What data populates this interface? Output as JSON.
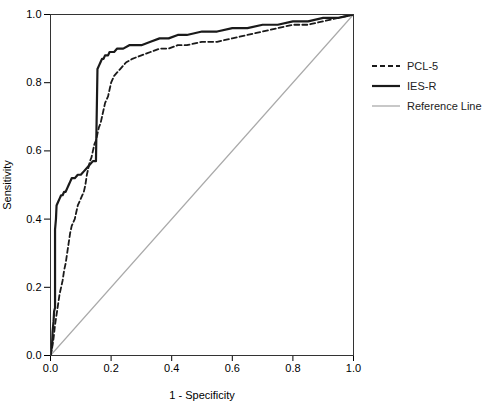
{
  "chart_data": {
    "type": "line",
    "xlabel": "1 - Specificity",
    "ylabel": "Sensitivity",
    "xlim": [
      0.0,
      1.0
    ],
    "ylim": [
      0.0,
      1.0
    ],
    "xticks": [
      {
        "value": 0,
        "label": "0.0"
      },
      0.2,
      0.4,
      0.6,
      0.8,
      {
        "value": 1,
        "label": "1.0"
      }
    ],
    "yticks": [
      {
        "value": 0,
        "label": "0.0"
      },
      0.2,
      0.4,
      0.6,
      0.8,
      {
        "value": 1,
        "label": "1.0"
      }
    ],
    "legend": "right",
    "series": [
      {
        "name": "PCL-5",
        "color": "#1a1a1a",
        "line_style": "dashed",
        "x": [
          0.0,
          0.005,
          0.01,
          0.015,
          0.02,
          0.025,
          0.03,
          0.035,
          0.04,
          0.045,
          0.05,
          0.055,
          0.06,
          0.065,
          0.07,
          0.075,
          0.08,
          0.085,
          0.09,
          0.095,
          0.1,
          0.105,
          0.11,
          0.115,
          0.12,
          0.125,
          0.13,
          0.135,
          0.14,
          0.145,
          0.15,
          0.155,
          0.16,
          0.165,
          0.17,
          0.175,
          0.18,
          0.185,
          0.19,
          0.195,
          0.2,
          0.21,
          0.22,
          0.23,
          0.25,
          0.27,
          0.3,
          0.33,
          0.36,
          0.39,
          0.42,
          0.45,
          0.5,
          0.55,
          0.6,
          0.65,
          0.7,
          0.75,
          0.8,
          0.85,
          0.9,
          0.95,
          1.0
        ],
        "values": [
          0.0,
          0.02,
          0.05,
          0.09,
          0.12,
          0.15,
          0.18,
          0.2,
          0.22,
          0.25,
          0.27,
          0.3,
          0.33,
          0.36,
          0.38,
          0.39,
          0.4,
          0.42,
          0.44,
          0.45,
          0.46,
          0.47,
          0.48,
          0.5,
          0.53,
          0.55,
          0.57,
          0.58,
          0.6,
          0.62,
          0.63,
          0.65,
          0.67,
          0.68,
          0.7,
          0.72,
          0.74,
          0.75,
          0.76,
          0.78,
          0.8,
          0.82,
          0.83,
          0.84,
          0.86,
          0.87,
          0.88,
          0.89,
          0.9,
          0.9,
          0.91,
          0.91,
          0.92,
          0.92,
          0.93,
          0.94,
          0.95,
          0.96,
          0.97,
          0.97,
          0.98,
          0.99,
          1.0
        ]
      },
      {
        "name": "IES-R",
        "color": "#1a1a1a",
        "line_style": "solid",
        "x": [
          0.0,
          0.005,
          0.007,
          0.01,
          0.012,
          0.015,
          0.015,
          0.018,
          0.02,
          0.025,
          0.03,
          0.035,
          0.04,
          0.045,
          0.05,
          0.055,
          0.06,
          0.065,
          0.07,
          0.08,
          0.09,
          0.1,
          0.11,
          0.12,
          0.13,
          0.14,
          0.15,
          0.155,
          0.16,
          0.165,
          0.17,
          0.175,
          0.18,
          0.185,
          0.19,
          0.195,
          0.2,
          0.21,
          0.22,
          0.24,
          0.26,
          0.28,
          0.3,
          0.33,
          0.36,
          0.39,
          0.42,
          0.45,
          0.5,
          0.55,
          0.6,
          0.65,
          0.7,
          0.75,
          0.8,
          0.85,
          0.9,
          0.95,
          1.0
        ],
        "values": [
          0.0,
          0.03,
          0.07,
          0.1,
          0.13,
          0.14,
          0.37,
          0.4,
          0.44,
          0.45,
          0.46,
          0.47,
          0.47,
          0.48,
          0.48,
          0.49,
          0.5,
          0.51,
          0.52,
          0.52,
          0.53,
          0.53,
          0.54,
          0.55,
          0.56,
          0.57,
          0.57,
          0.84,
          0.85,
          0.86,
          0.87,
          0.87,
          0.88,
          0.88,
          0.88,
          0.89,
          0.89,
          0.89,
          0.9,
          0.9,
          0.91,
          0.91,
          0.91,
          0.92,
          0.93,
          0.93,
          0.94,
          0.94,
          0.95,
          0.95,
          0.96,
          0.96,
          0.97,
          0.97,
          0.98,
          0.98,
          0.99,
          0.99,
          1.0
        ]
      },
      {
        "name": "Reference Line",
        "color": "#aaaaaa",
        "line_style": "solid",
        "x": [
          0.0,
          1.0
        ],
        "values": [
          0.0,
          1.0
        ]
      }
    ]
  }
}
